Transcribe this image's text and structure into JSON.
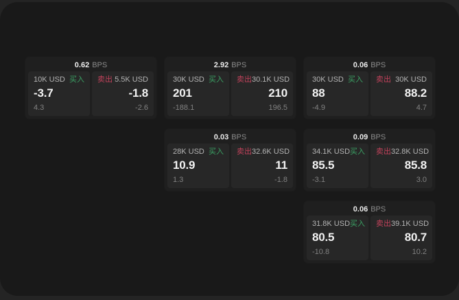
{
  "theme": {
    "backdrop": "#242424",
    "window_bg": "#191919",
    "card_bg": "#1f1f1f",
    "panel_bg": "#272727",
    "buy_color": "#3ba164",
    "sell_color": "#c2425b"
  },
  "labels": {
    "bps_unit": "BPS",
    "buy": "买入",
    "sell": "卖出"
  },
  "cards": [
    {
      "row": 1,
      "col": 1,
      "bps": "0.62",
      "buy": {
        "notional": "10K USD",
        "price": "-3.7",
        "delta": "4.3"
      },
      "sell": {
        "notional": "5.5K USD",
        "price": "-1.8",
        "delta": "-2.6"
      }
    },
    {
      "row": 1,
      "col": 2,
      "bps": "2.92",
      "buy": {
        "notional": "30K USD",
        "price": "201",
        "delta": "-188.1"
      },
      "sell": {
        "notional": "30.1K USD",
        "price": "210",
        "delta": "196.5"
      }
    },
    {
      "row": 1,
      "col": 3,
      "bps": "0.06",
      "buy": {
        "notional": "30K USD",
        "price": "88",
        "delta": "-4.9"
      },
      "sell": {
        "notional": "30K USD",
        "price": "88.2",
        "delta": "4.7"
      }
    },
    {
      "row": 2,
      "col": 2,
      "bps": "0.03",
      "buy": {
        "notional": "28K USD",
        "price": "10.9",
        "delta": "1.3"
      },
      "sell": {
        "notional": "32.6K USD",
        "price": "11",
        "delta": "-1.8"
      }
    },
    {
      "row": 2,
      "col": 3,
      "bps": "0.09",
      "buy": {
        "notional": "34.1K USD",
        "price": "85.5",
        "delta": "-3.1"
      },
      "sell": {
        "notional": "32.8K USD",
        "price": "85.8",
        "delta": "3.0"
      }
    },
    {
      "row": 3,
      "col": 3,
      "bps": "0.06",
      "buy": {
        "notional": "31.8K USD",
        "price": "80.5",
        "delta": "-10.8"
      },
      "sell": {
        "notional": "39.1K USD",
        "price": "80.7",
        "delta": "10.2"
      }
    }
  ]
}
